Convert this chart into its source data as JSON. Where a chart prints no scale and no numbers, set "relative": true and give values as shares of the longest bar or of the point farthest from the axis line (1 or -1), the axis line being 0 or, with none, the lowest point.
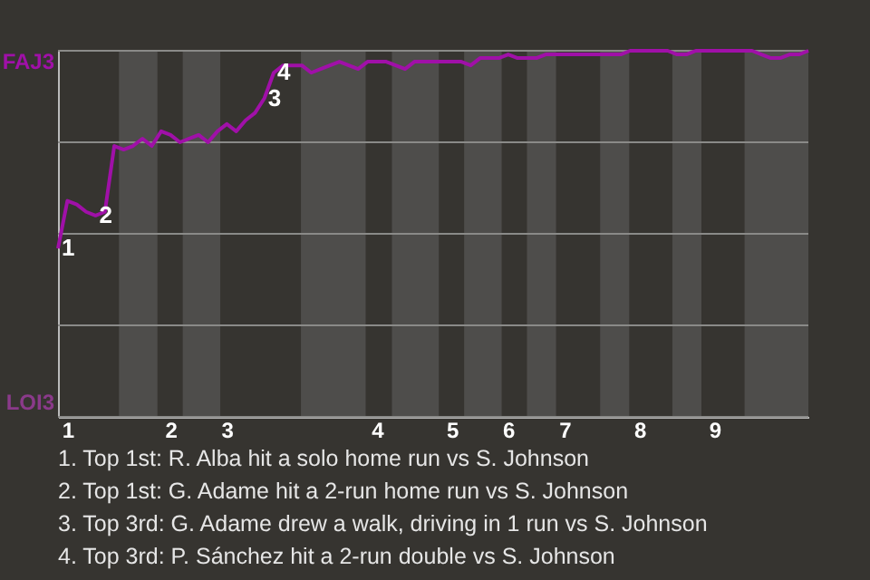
{
  "chart_data": {
    "type": "line",
    "relative": true,
    "categories": [
      null,
      "1",
      null,
      null,
      null,
      null,
      null,
      null,
      null,
      null,
      null,
      null,
      "2",
      null,
      null,
      null,
      null,
      null,
      "3",
      null,
      null,
      null,
      null,
      null,
      null,
      null,
      null,
      null,
      null,
      null,
      null,
      null,
      null,
      null,
      "4",
      null,
      null,
      null,
      null,
      null,
      null,
      null,
      "5",
      null,
      null,
      null,
      null,
      null,
      "6",
      null,
      null,
      null,
      null,
      null,
      "7",
      null,
      null,
      null,
      null,
      null,
      null,
      null,
      "8",
      null,
      null,
      null,
      null,
      null,
      null,
      null,
      "9",
      null,
      null,
      null,
      null,
      null,
      null,
      null,
      null,
      null,
      null
    ],
    "series": [
      {
        "color": "#a010a8",
        "values": [
          0.46,
          0.59,
          0.58,
          0.56,
          0.55,
          0.56,
          0.74,
          0.73,
          0.74,
          0.76,
          0.74,
          0.78,
          0.77,
          0.75,
          0.76,
          0.77,
          0.75,
          0.78,
          0.8,
          0.78,
          0.81,
          0.83,
          0.87,
          0.94,
          0.96,
          0.96,
          0.96,
          0.94,
          0.95,
          0.96,
          0.97,
          0.96,
          0.95,
          0.97,
          0.97,
          0.97,
          0.96,
          0.95,
          0.97,
          0.97,
          0.97,
          0.97,
          0.97,
          0.97,
          0.96,
          0.98,
          0.98,
          0.98,
          0.99,
          0.98,
          0.98,
          0.98,
          0.99,
          0.99,
          0.99,
          0.99,
          0.99,
          0.99,
          0.99,
          0.99,
          0.99,
          1.0,
          1.0,
          1.0,
          1.0,
          1.0,
          0.99,
          0.99,
          1.0,
          1.0,
          1.0,
          1.0,
          1.0,
          1.0,
          1.0,
          0.99,
          0.98,
          0.98,
          0.99,
          0.99,
          1.0
        ]
      }
    ],
    "grid": "y",
    "annotations": [
      "FAJ3",
      "LOI3",
      {
        "text": "1",
        "y": 0.46
      },
      {
        "text": "2",
        "y": 0.55
      },
      {
        "text": "3",
        "y": 0.87
      },
      {
        "text": "4",
        "y": 0.94
      },
      "1. Top 1st: R. Alba hit a solo home run vs S. Johnson",
      "2. Top 1st: G. Adame hit a 2-run home run vs S. Johnson",
      "3. Top 3rd: G. Adame drew a walk, driving in 1 run vs S. Johnson",
      "4. Top 3rd: P. Sánchez hit a 2-run double vs S. Johnson"
    ]
  }
}
